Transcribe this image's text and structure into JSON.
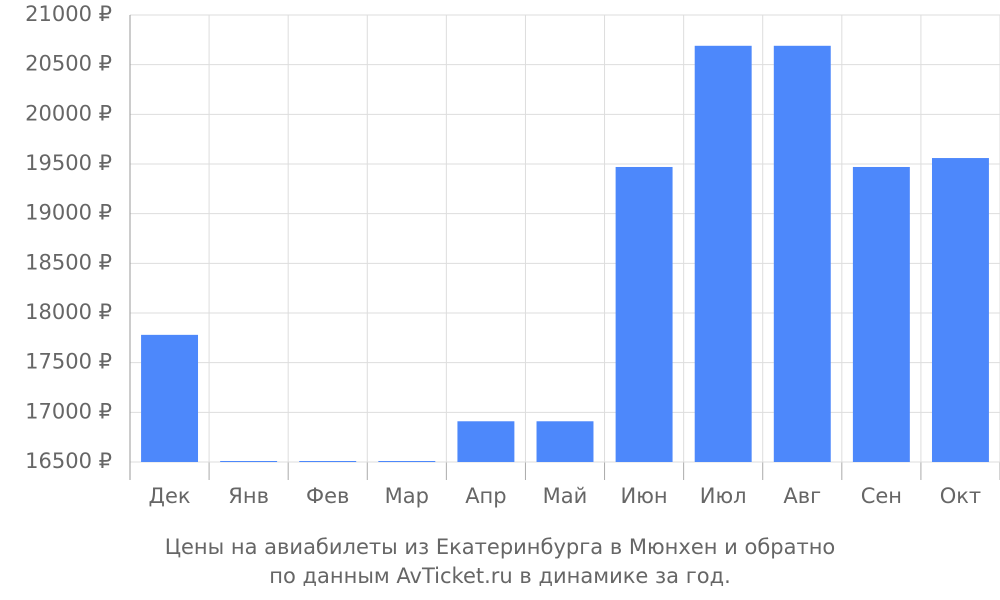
{
  "chart_data": {
    "type": "bar",
    "title_lines": [
      "Цены на авиабилеты из Екатеринбурга в Мюнхен и обратно",
      "по данным AvTicket.ru в динамике за год."
    ],
    "categories": [
      "Дек",
      "Янв",
      "Фев",
      "Мар",
      "Апр",
      "Май",
      "Июн",
      "Июл",
      "Авг",
      "Сен",
      "Окт"
    ],
    "values": [
      17780,
      16500,
      16500,
      16500,
      16910,
      16910,
      19470,
      20690,
      20690,
      19470,
      19560
    ],
    "color": "#4d88fb",
    "ylim": [
      16500,
      21000
    ],
    "yticks": [
      {
        "value": 16500,
        "label": "16500 ₽"
      },
      {
        "value": 17000,
        "label": "17000 ₽"
      },
      {
        "value": 17500,
        "label": "17500 ₽"
      },
      {
        "value": 18000,
        "label": "18000 ₽"
      },
      {
        "value": 18500,
        "label": "18500 ₽"
      },
      {
        "value": 19000,
        "label": "19000 ₽"
      },
      {
        "value": 19500,
        "label": "19500 ₽"
      },
      {
        "value": 20000,
        "label": "20000 ₽"
      },
      {
        "value": 20500,
        "label": "20500 ₽"
      },
      {
        "value": 21000,
        "label": "21000 ₽"
      }
    ],
    "grid": true
  }
}
